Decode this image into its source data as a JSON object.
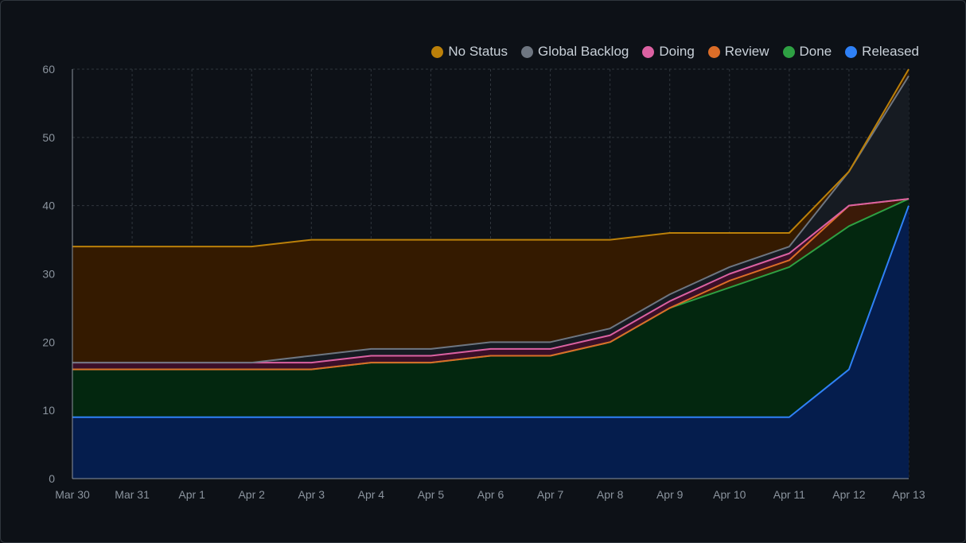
{
  "colors": {
    "background": "#0d1117",
    "grid": "#30363d",
    "axis": "#8b949e"
  },
  "chart_data": {
    "type": "area",
    "stacked": true,
    "x": [
      "Mar 30",
      "Mar 31",
      "Apr 1",
      "Apr 2",
      "Apr 3",
      "Apr 4",
      "Apr 5",
      "Apr 6",
      "Apr 7",
      "Apr 8",
      "Apr 9",
      "Apr 10",
      "Apr 11",
      "Apr 12",
      "Apr 13"
    ],
    "ylim": [
      0,
      60
    ],
    "yticks": [
      0,
      10,
      20,
      30,
      40,
      50,
      60
    ],
    "grid": true,
    "legend_position": "top-right",
    "series": [
      {
        "name": "Released",
        "color": "#2f81f7",
        "fill": "#051d4d",
        "values": [
          9,
          9,
          9,
          9,
          9,
          9,
          9,
          9,
          9,
          9,
          9,
          9,
          9,
          16,
          40
        ]
      },
      {
        "name": "Done",
        "color": "#2ea043",
        "fill": "#03270f",
        "values": [
          7,
          7,
          7,
          7,
          7,
          8,
          8,
          9,
          9,
          11,
          16,
          19,
          22,
          21,
          1
        ]
      },
      {
        "name": "Review",
        "color": "#db6d28",
        "fill": "#3b1a08",
        "values": [
          0,
          0,
          0,
          0,
          0,
          0,
          0,
          0,
          0,
          0,
          0,
          1,
          1,
          3,
          0
        ]
      },
      {
        "name": "Doing",
        "color": "#db61a2",
        "fill": "#3b0f28",
        "values": [
          1,
          1,
          1,
          1,
          1,
          1,
          1,
          1,
          1,
          1,
          1,
          1,
          1,
          0,
          0
        ]
      },
      {
        "name": "Global Backlog",
        "color": "#6e7681",
        "fill": "#161b22",
        "values": [
          0,
          0,
          0,
          0,
          1,
          1,
          1,
          1,
          1,
          1,
          1,
          1,
          1,
          5,
          18
        ]
      },
      {
        "name": "No Status",
        "color": "#bb8009",
        "fill": "#341a00",
        "values": [
          17,
          17,
          17,
          17,
          17,
          16,
          16,
          15,
          15,
          13,
          9,
          5,
          2,
          0,
          1
        ]
      }
    ]
  }
}
